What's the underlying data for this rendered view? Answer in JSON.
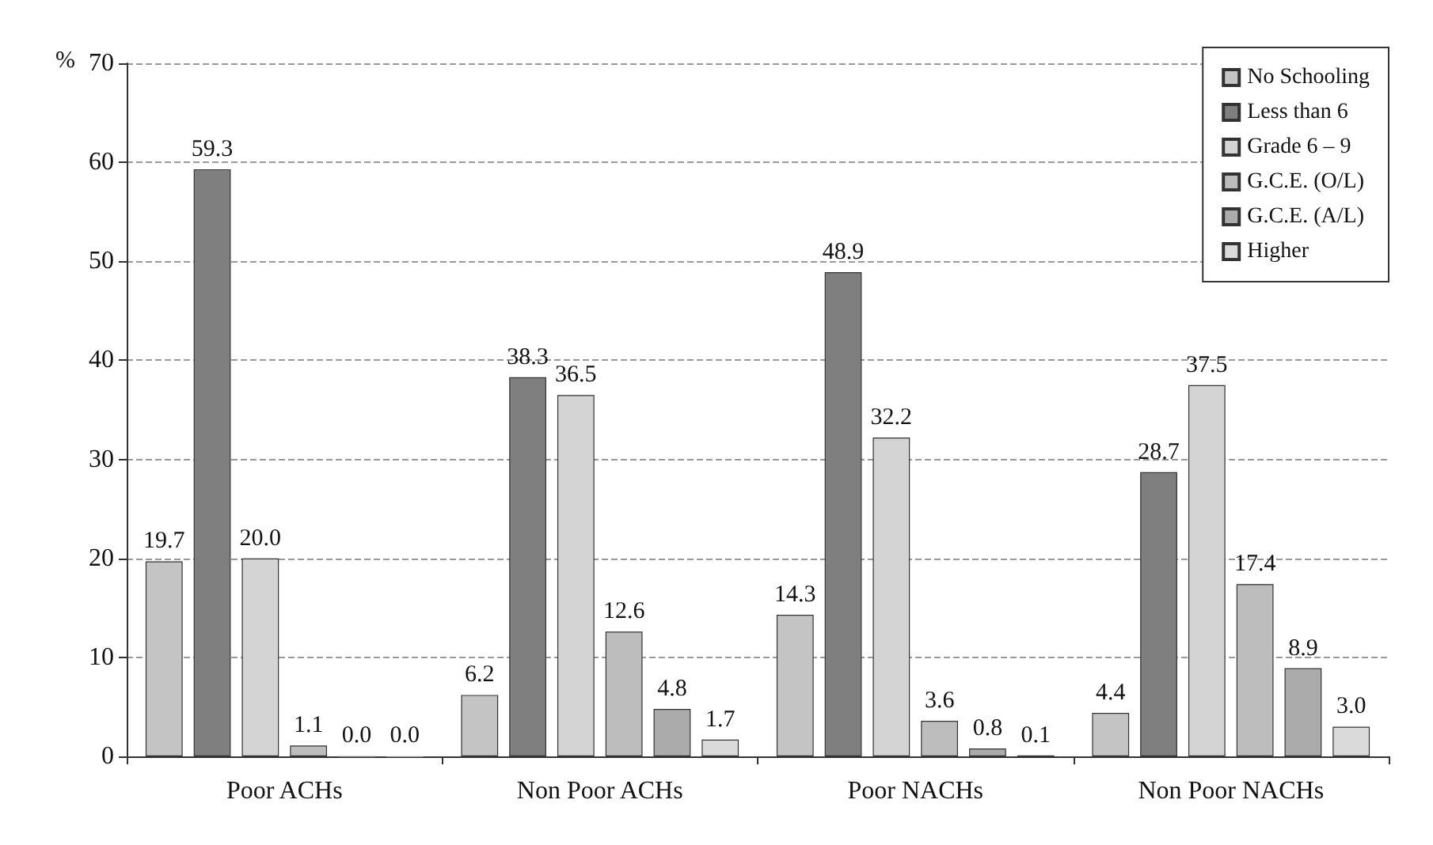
{
  "chart_data": {
    "type": "bar",
    "ylabel": "%",
    "categories": [
      "Poor ACHs",
      "Non Poor ACHs",
      "Poor NACHs",
      "Non Poor NACHs"
    ],
    "series": [
      {
        "name": "No Schooling",
        "color": "#c4c4c4",
        "values": [
          19.7,
          6.2,
          14.3,
          4.4
        ],
        "value_labels": [
          "19.7",
          "6.2",
          "14.3",
          "4.4"
        ]
      },
      {
        "name": "Less than 6",
        "color": "#7f7f7f",
        "values": [
          59.3,
          38.3,
          48.9,
          28.7
        ],
        "value_labels": [
          "59.3",
          "38.3",
          "48.9",
          "28.7"
        ]
      },
      {
        "name": "Grade 6 – 9",
        "color": "#d4d4d4",
        "values": [
          20.0,
          36.5,
          32.2,
          37.5
        ],
        "value_labels": [
          "20.0",
          "36.5",
          "32.2",
          "37.5"
        ]
      },
      {
        "name": "G.C.E. (O/L)",
        "color": "#bdbdbd",
        "values": [
          1.1,
          12.6,
          3.6,
          17.4
        ],
        "value_labels": [
          "1.1",
          "12.6",
          "3.6",
          "17.4"
        ]
      },
      {
        "name": "G.C.E. (A/L)",
        "color": "#ababab",
        "values": [
          0.0,
          4.8,
          0.8,
          8.9
        ],
        "value_labels": [
          "0.0",
          "4.8",
          "0.8",
          "8.9"
        ]
      },
      {
        "name": "Higher",
        "color": "#dadada",
        "values": [
          0.0,
          1.7,
          0.1,
          3.0
        ],
        "value_labels": [
          "0.0",
          "1.7",
          "0.1",
          "3.0"
        ]
      }
    ],
    "ylim": [
      0,
      70
    ],
    "yticks": [
      0,
      10,
      20,
      30,
      40,
      50,
      60,
      70
    ],
    "grid": "y",
    "legend": "top right"
  }
}
